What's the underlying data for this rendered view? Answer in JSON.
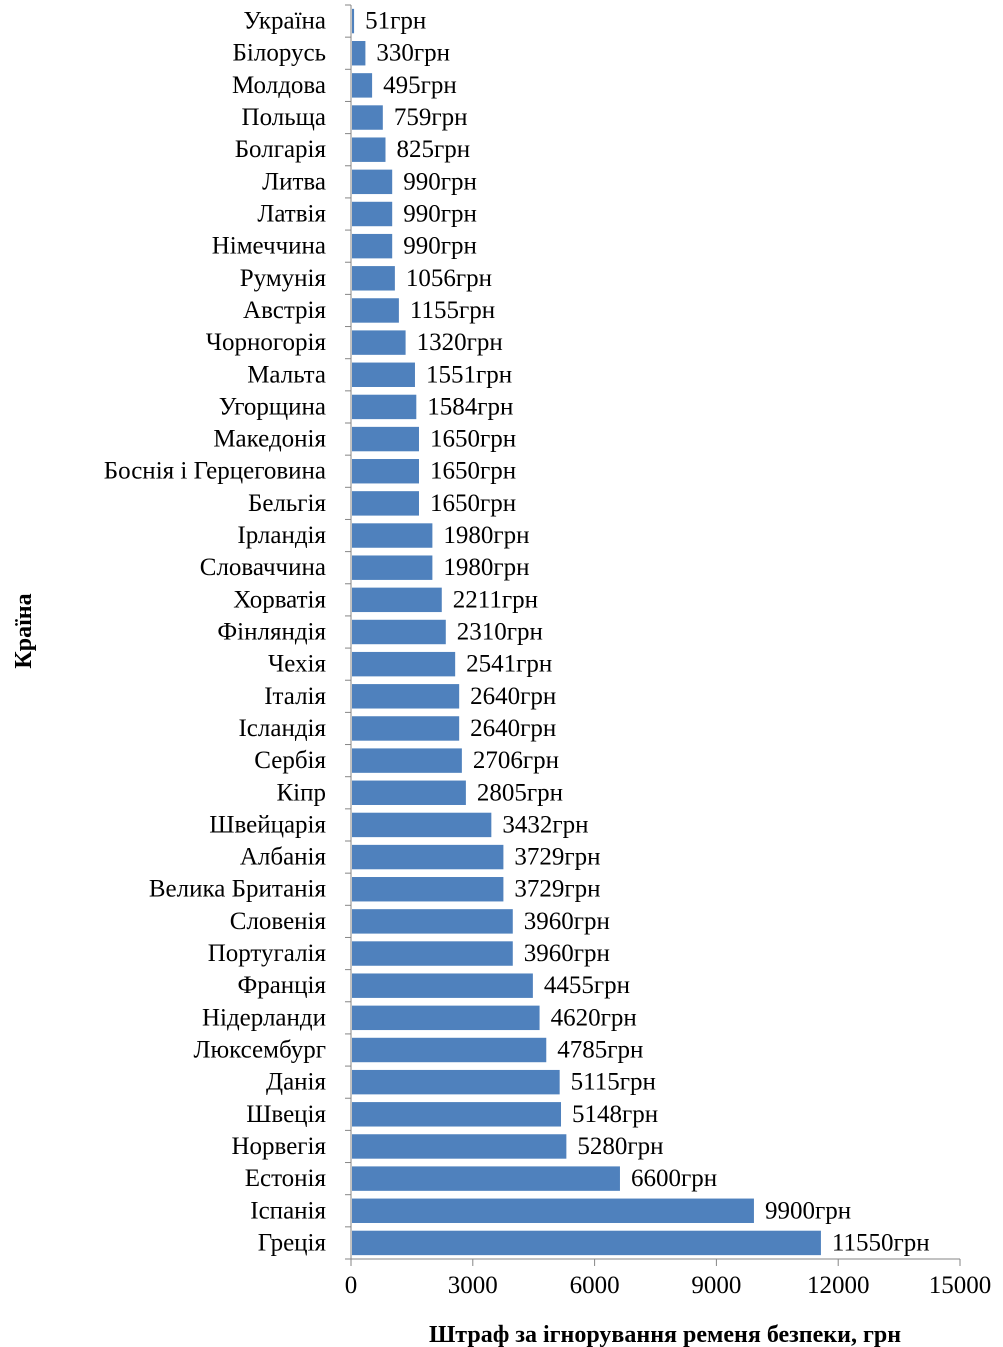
{
  "chart_data": {
    "type": "bar",
    "orientation": "horizontal",
    "categories": [
      "Україна",
      "Білорусь",
      "Молдова",
      "Польща",
      "Болгарія",
      "Литва",
      "Латвія",
      "Німеччина",
      "Румунія",
      "Австрія",
      "Чорногорія",
      "Мальта",
      "Угорщина",
      "Македонія",
      "Боснія і Герцеговина",
      "Бельгія",
      "Ірландія",
      "Словаччина",
      "Хорватія",
      "Фінляндія",
      "Чехія",
      "Італія",
      "Ісландія",
      "Сербія",
      "Кіпр",
      "Швейцарія",
      "Албанія",
      "Велика Британія",
      "Словенія",
      "Португалія",
      "Франція",
      "Нідерланди",
      "Люксембург",
      "Данія",
      "Швеція",
      "Норвегія",
      "Естонія",
      "Іспанія",
      "Греція"
    ],
    "values": [
      51,
      330,
      495,
      759,
      825,
      990,
      990,
      990,
      1056,
      1155,
      1320,
      1551,
      1584,
      1650,
      1650,
      1650,
      1980,
      1980,
      2211,
      2310,
      2541,
      2640,
      2640,
      2706,
      2805,
      3432,
      3729,
      3729,
      3960,
      3960,
      4455,
      4620,
      4785,
      5115,
      5148,
      5280,
      6600,
      9900,
      11550
    ],
    "value_labels": [
      "51грн",
      "330грн",
      "495грн",
      "759грн",
      "825грн",
      "990грн",
      "990грн",
      "990грн",
      "1056грн",
      "1155грн",
      "1320грн",
      "1551грн",
      "1584грн",
      "1650грн",
      "1650грн",
      "1650грн",
      "1980грн",
      "1980грн",
      "2211грн",
      "2310грн",
      "2541грн",
      "2640грн",
      "2640грн",
      "2706грн",
      "2805грн",
      "3432грн",
      "3729грн",
      "3729грн",
      "3960грн",
      "3960грн",
      "4455грн",
      "4620грн",
      "4785грн",
      "5115грн",
      "5148грн",
      "5280грн",
      "6600грн",
      "9900грн",
      "11550грн"
    ],
    "xlim": [
      0,
      15000
    ],
    "xticks": [
      0,
      3000,
      6000,
      9000,
      12000,
      15000
    ],
    "xtick_labels": [
      "0",
      "3000",
      "6000",
      "9000",
      "12000",
      "15000"
    ],
    "xlabel": "Штраф за ігнорування ременя безпеки, грн",
    "ylabel": "Країна",
    "bar_color": "#4f81bd",
    "grid": false,
    "legend": false
  }
}
